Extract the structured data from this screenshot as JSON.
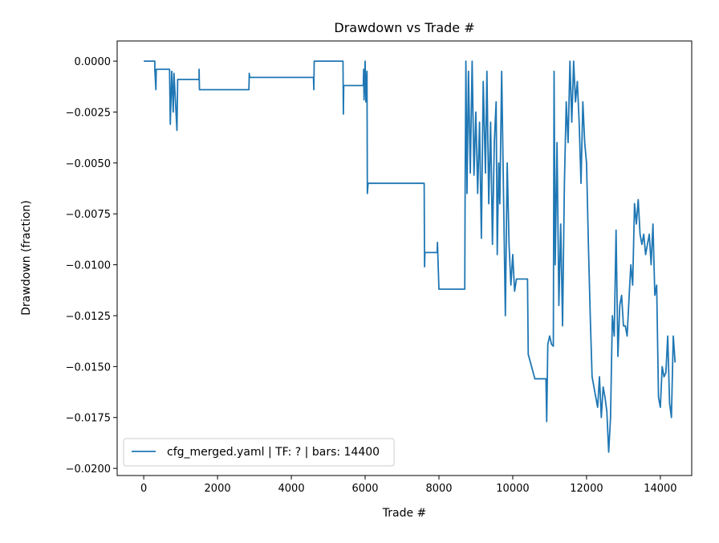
{
  "chart_data": {
    "type": "line",
    "title": "Drawdown vs Trade #",
    "x_label": "Trade #",
    "y_label": "Drawdown (fraction)",
    "xlim": [
      -720,
      14850
    ],
    "ylim": [
      -0.02035,
      0.00099
    ],
    "xticks": [
      0,
      2000,
      4000,
      6000,
      8000,
      10000,
      12000,
      14000
    ],
    "yticks": [
      {
        "value": 0,
        "label": "0.0000"
      },
      {
        "value": -0.0025,
        "label": "−0.0025"
      },
      {
        "value": -0.005,
        "label": "−0.0050"
      },
      {
        "value": -0.0075,
        "label": "−0.0075"
      },
      {
        "value": -0.01,
        "label": "−0.0100"
      },
      {
        "value": -0.0125,
        "label": "−0.0125"
      },
      {
        "value": -0.015,
        "label": "−0.0150"
      },
      {
        "value": -0.0175,
        "label": "−0.0175"
      },
      {
        "value": -0.02,
        "label": "−0.0200"
      }
    ],
    "legend": "lower left",
    "x": [
      0,
      300,
      300,
      330,
      340,
      700,
      720,
      760,
      800,
      820,
      900,
      920,
      1500,
      1500,
      1510,
      2850,
      2860,
      2870,
      4600,
      4610,
      4620,
      5400,
      5410,
      5420,
      5950,
      5960,
      5970,
      6000,
      6020,
      6050,
      6060,
      6080,
      7600,
      7610,
      7620,
      7950,
      7960,
      7980,
      8000,
      8700,
      8710,
      8720,
      8730,
      8760,
      8800,
      8850,
      8900,
      8950,
      9000,
      9050,
      9100,
      9150,
      9200,
      9260,
      9300,
      9350,
      9400,
      9450,
      9500,
      9550,
      9580,
      9620,
      9650,
      9700,
      9750,
      9800,
      9850,
      9900,
      9950,
      10000,
      10050,
      10100,
      10400,
      10420,
      10600,
      10900,
      10920,
      10950,
      11000,
      11050,
      11100,
      11120,
      11150,
      11200,
      11250,
      11300,
      11350,
      11400,
      11450,
      11500,
      11550,
      11600,
      11650,
      11700,
      11750,
      11800,
      11850,
      11900,
      11950,
      12000,
      12050,
      12100,
      12150,
      12200,
      12300,
      12350,
      12400,
      12450,
      12500,
      12550,
      12600,
      12650,
      12700,
      12750,
      12800,
      12850,
      12900,
      12950,
      13000,
      13050,
      13100,
      13150,
      13200,
      13250,
      13300,
      13350,
      13400,
      13450,
      13500,
      13550,
      13600,
      13650,
      13700,
      13750,
      13800,
      13850,
      13900,
      13950,
      14000,
      14050,
      14100,
      14150,
      14200,
      14250,
      14300,
      14350,
      14400
    ],
    "series": [
      {
        "name": "cfg_merged.yaml | TF: ? | bars: 14400",
        "color": "#1f77b4",
        "values": [
          0,
          0,
          -0.0004,
          -0.0014,
          -0.0004,
          -0.0004,
          -0.0031,
          -0.0005,
          -0.0025,
          -0.0006,
          -0.0034,
          -0.0009,
          -0.0009,
          -0.0004,
          -0.0014,
          -0.0014,
          -0.0006,
          -0.0008,
          -0.0008,
          -0.0014,
          0,
          0,
          -0.0026,
          -0.0012,
          -0.0012,
          -0.0004,
          -0.0019,
          0,
          -0.002,
          -0.0005,
          -0.0065,
          -0.006,
          -0.006,
          -0.0101,
          -0.0094,
          -0.0094,
          -0.0089,
          -0.0101,
          -0.0112,
          -0.0112,
          -0.006,
          -0.0033,
          0,
          -0.0065,
          -0.0005,
          -0.0055,
          0,
          -0.0056,
          -0.0025,
          -0.0065,
          -0.003,
          -0.0087,
          -0.001,
          -0.0055,
          -0.0005,
          -0.007,
          -0.003,
          -0.009,
          -0.004,
          -0.002,
          -0.0095,
          -0.005,
          -0.007,
          -0.0005,
          -0.0065,
          -0.0125,
          -0.005,
          -0.009,
          -0.011,
          -0.0095,
          -0.0113,
          -0.0107,
          -0.0107,
          -0.0144,
          -0.0156,
          -0.0156,
          -0.0177,
          -0.0139,
          -0.0135,
          -0.0139,
          -0.014,
          -0.0005,
          -0.01,
          -0.004,
          -0.012,
          -0.008,
          -0.013,
          -0.006,
          -0.002,
          -0.004,
          0,
          -0.003,
          0,
          -0.002,
          -0.001,
          -0.003,
          -0.006,
          -0.002,
          -0.004,
          -0.005,
          -0.009,
          -0.0125,
          -0.0155,
          -0.016,
          -0.017,
          -0.0155,
          -0.0175,
          -0.016,
          -0.0165,
          -0.0172,
          -0.0192,
          -0.0175,
          -0.0125,
          -0.0135,
          -0.0083,
          -0.0145,
          -0.012,
          -0.0115,
          -0.013,
          -0.013,
          -0.0135,
          -0.0117,
          -0.01,
          -0.011,
          -0.007,
          -0.008,
          -0.0068,
          -0.0085,
          -0.009,
          -0.0085,
          -0.0095,
          -0.009,
          -0.0085,
          -0.01,
          -0.008,
          -0.0115,
          -0.011,
          -0.0165,
          -0.017,
          -0.015,
          -0.0155,
          -0.0153,
          -0.0135,
          -0.0168,
          -0.0175,
          -0.0135,
          -0.0148
        ]
      }
    ]
  }
}
